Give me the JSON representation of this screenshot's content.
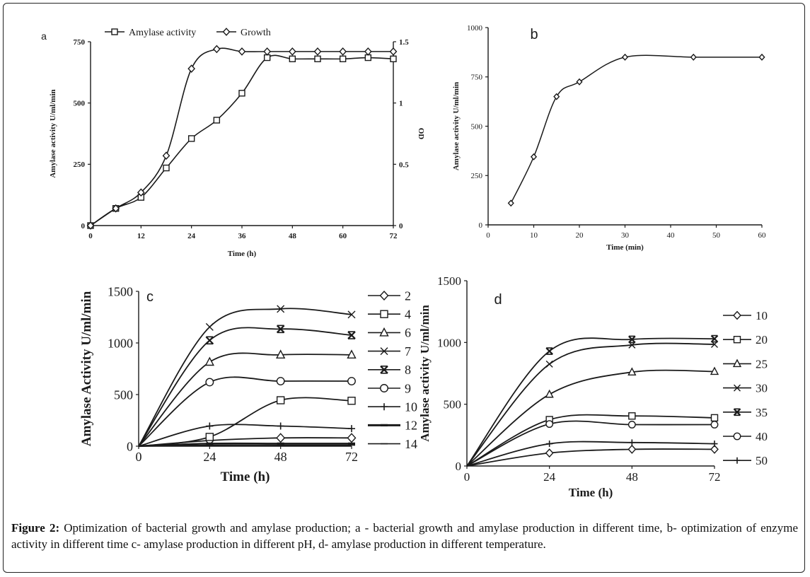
{
  "caption": {
    "label": "Figure 2:",
    "text": "Optimization of bacterial growth and amylase production; a - bacterial growth and amylase production in different time, b- optimization of enzyme activity in different time c- amylase production in different pH, d- amylase production in different temperature."
  },
  "colors": {
    "ink": "#1a1a1a",
    "background": "#ffffff"
  },
  "chart_data": [
    {
      "id": "a",
      "type": "line",
      "panel_label": "a",
      "xlabel": "Time (h)",
      "ylabel": "Amylase activity U/ml/min",
      "y2label": "OD",
      "xlim": [
        0,
        72
      ],
      "ylim": [
        0,
        750
      ],
      "y2lim": [
        0,
        1.5
      ],
      "xticks": [
        "0",
        "12",
        "24",
        "36",
        "48",
        "60",
        "72"
      ],
      "yticks": [
        "0",
        "250",
        "500",
        "750"
      ],
      "y2ticks": [
        "0",
        "0.5",
        "1",
        "1.5"
      ],
      "legend": {
        "position": "top",
        "entries": [
          "Amylase activity",
          "Growth"
        ]
      },
      "series": [
        {
          "name": "Amylase activity",
          "marker": "square",
          "axis": "left",
          "x": [
            0,
            6,
            12,
            18,
            24,
            30,
            36,
            42,
            48,
            54,
            60,
            66,
            72
          ],
          "y": [
            0,
            70,
            115,
            235,
            355,
            430,
            540,
            685,
            680,
            680,
            680,
            685,
            680
          ]
        },
        {
          "name": "Growth",
          "marker": "diamond",
          "axis": "right",
          "x": [
            0,
            6,
            12,
            18,
            24,
            30,
            36,
            42,
            48,
            54,
            60,
            66,
            72
          ],
          "y": [
            0,
            0.14,
            0.27,
            0.57,
            1.28,
            1.44,
            1.42,
            1.42,
            1.42,
            1.42,
            1.42,
            1.42,
            1.42
          ]
        }
      ]
    },
    {
      "id": "b",
      "type": "line",
      "panel_label": "b",
      "xlabel": "Time (min)",
      "ylabel": "Amylase activity U/ml/min",
      "xlim": [
        0,
        60
      ],
      "ylim": [
        0,
        1000
      ],
      "xticks": [
        "0",
        "10",
        "20",
        "30",
        "40",
        "50",
        "60"
      ],
      "yticks": [
        "0",
        "250",
        "500",
        "750",
        "1000"
      ],
      "series": [
        {
          "marker": "diamond",
          "x": [
            5,
            10,
            15,
            20,
            30,
            45,
            60
          ],
          "y": [
            110,
            345,
            650,
            725,
            850,
            850,
            850
          ]
        }
      ]
    },
    {
      "id": "c",
      "type": "line",
      "panel_label": "c",
      "xlabel": "Time (h)",
      "ylabel": "Amylase Activity U/ml/min",
      "xlim": [
        0,
        72
      ],
      "ylim": [
        0,
        1500
      ],
      "xticks": [
        "0",
        "24",
        "48",
        "72"
      ],
      "yticks": [
        "0",
        "500",
        "1000",
        "1500"
      ],
      "legend": {
        "position": "right",
        "entries": [
          "2",
          "4",
          "6",
          "7",
          "8",
          "9",
          "10",
          "12",
          "14"
        ]
      },
      "series": [
        {
          "name": "2",
          "marker": "diamond",
          "x": [
            0,
            24,
            48,
            72
          ],
          "y": [
            0,
            55,
            80,
            80
          ]
        },
        {
          "name": "4",
          "marker": "square",
          "x": [
            0,
            24,
            48,
            72
          ],
          "y": [
            0,
            90,
            445,
            440
          ]
        },
        {
          "name": "6",
          "marker": "triangle",
          "x": [
            0,
            24,
            48,
            72
          ],
          "y": [
            0,
            815,
            885,
            885
          ]
        },
        {
          "name": "7",
          "marker": "x",
          "x": [
            0,
            24,
            48,
            72
          ],
          "y": [
            0,
            1155,
            1330,
            1275
          ]
        },
        {
          "name": "8",
          "marker": "xbar",
          "x": [
            0,
            24,
            48,
            72
          ],
          "y": [
            0,
            1025,
            1135,
            1075
          ]
        },
        {
          "name": "9",
          "marker": "circle",
          "x": [
            0,
            24,
            48,
            72
          ],
          "y": [
            0,
            620,
            630,
            630
          ]
        },
        {
          "name": "10",
          "marker": "plus",
          "x": [
            0,
            24,
            48,
            72
          ],
          "y": [
            0,
            195,
            195,
            170
          ]
        },
        {
          "name": "12",
          "marker": "dash-thick",
          "x": [
            0,
            24,
            48,
            72
          ],
          "y": [
            0,
            25,
            25,
            25
          ]
        },
        {
          "name": "14",
          "marker": "dash",
          "x": [
            0,
            24,
            48,
            72
          ],
          "y": [
            0,
            10,
            10,
            10
          ]
        }
      ]
    },
    {
      "id": "d",
      "type": "line",
      "panel_label": "d",
      "xlabel": "Time (h)",
      "ylabel": "Amylase activity U/ml/min",
      "xlim": [
        0,
        72
      ],
      "ylim": [
        0,
        1500
      ],
      "xticks": [
        "0",
        "24",
        "48",
        "72"
      ],
      "yticks": [
        "0",
        "500",
        "1000",
        "1500"
      ],
      "legend": {
        "position": "right",
        "entries": [
          "10",
          "20",
          "25",
          "30",
          "35",
          "40",
          "50"
        ]
      },
      "series": [
        {
          "name": "10",
          "marker": "diamond",
          "x": [
            0,
            24,
            48,
            72
          ],
          "y": [
            0,
            105,
            135,
            135
          ]
        },
        {
          "name": "20",
          "marker": "square",
          "x": [
            0,
            24,
            48,
            72
          ],
          "y": [
            0,
            375,
            405,
            390
          ]
        },
        {
          "name": "25",
          "marker": "triangle",
          "x": [
            0,
            24,
            48,
            72
          ],
          "y": [
            0,
            580,
            760,
            765
          ]
        },
        {
          "name": "30",
          "marker": "x",
          "x": [
            0,
            24,
            48,
            72
          ],
          "y": [
            0,
            825,
            980,
            985
          ]
        },
        {
          "name": "35",
          "marker": "xbar",
          "x": [
            0,
            24,
            48,
            72
          ],
          "y": [
            0,
            930,
            1025,
            1030
          ]
        },
        {
          "name": "40",
          "marker": "circle",
          "x": [
            0,
            24,
            48,
            72
          ],
          "y": [
            0,
            340,
            335,
            335
          ]
        },
        {
          "name": "50",
          "marker": "plus",
          "x": [
            0,
            24,
            48,
            72
          ],
          "y": [
            0,
            180,
            190,
            180
          ]
        }
      ]
    }
  ]
}
